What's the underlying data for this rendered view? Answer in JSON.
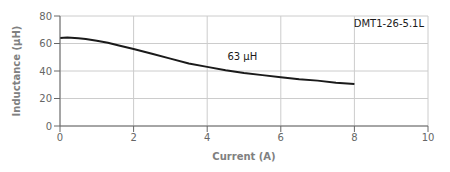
{
  "chart_data": {
    "type": "line",
    "xlabel": "Current (A)",
    "ylabel": "Inductance (μH)",
    "x": [
      0.0,
      0.1,
      0.2,
      0.3,
      0.5,
      0.7,
      1.0,
      1.3,
      1.6,
      2.0,
      2.5,
      3.0,
      3.5,
      4.0,
      4.5,
      5.0,
      5.5,
      6.0,
      6.5,
      7.0,
      7.5,
      8.0
    ],
    "values": [
      64.0,
      64.2,
      64.3,
      64.2,
      63.8,
      63.2,
      62.0,
      60.5,
      58.5,
      56.0,
      52.5,
      49.0,
      45.5,
      43.0,
      40.5,
      38.5,
      37.0,
      35.5,
      34.0,
      33.0,
      31.5,
      30.5
    ],
    "color": "#1a1a1a",
    "xlim": [
      0,
      10
    ],
    "ylim": [
      0,
      80
    ],
    "xticks": [
      0,
      2,
      4,
      6,
      8,
      10
    ],
    "yticks": [
      0,
      20,
      40,
      60,
      80
    ],
    "grid": true,
    "annotations": [
      {
        "text": "63 μH",
        "x": 4.55,
        "y": 50.5
      },
      {
        "text": "DMT1-26-5.1L"
      }
    ]
  }
}
